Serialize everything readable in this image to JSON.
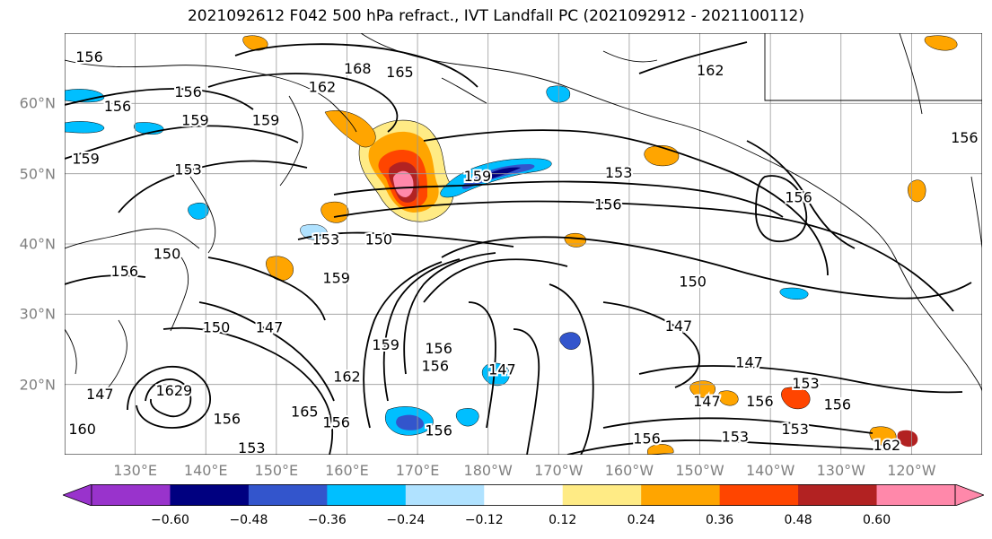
{
  "title": "2021092612 F042 500 hPa refract., IVT Landfall PC (2021092912 - 2021100112)",
  "map": {
    "projection": "equirectangular",
    "lon_range_east": [
      120,
      250
    ],
    "lat_range": [
      10,
      70
    ],
    "lat_labels": [
      {
        "lat": 60,
        "text": "60°N"
      },
      {
        "lat": 50,
        "text": "50°N"
      },
      {
        "lat": 40,
        "text": "40°N"
      },
      {
        "lat": 30,
        "text": "30°N"
      },
      {
        "lat": 20,
        "text": "20°N"
      }
    ],
    "lon_labels": [
      {
        "lon": 130,
        "text": "130°E"
      },
      {
        "lon": 140,
        "text": "140°E"
      },
      {
        "lon": 150,
        "text": "150°E"
      },
      {
        "lon": 160,
        "text": "160°E"
      },
      {
        "lon": 170,
        "text": "170°E"
      },
      {
        "lon": 180,
        "text": "180°W"
      },
      {
        "lon": 190,
        "text": "170°W"
      },
      {
        "lon": 200,
        "text": "160°W"
      },
      {
        "lon": 210,
        "text": "150°W"
      },
      {
        "lon": 220,
        "text": "140°W"
      },
      {
        "lon": 230,
        "text": "130°W"
      },
      {
        "lon": 240,
        "text": "120°W"
      }
    ],
    "gridlines": true,
    "contour_labels": [
      {
        "text": "168",
        "lon": 161.5,
        "lat": 64.8
      },
      {
        "text": "165",
        "lon": 167.5,
        "lat": 64.3
      },
      {
        "text": "162",
        "lon": 156.5,
        "lat": 62.2
      },
      {
        "text": "162",
        "lon": 211.5,
        "lat": 64.6
      },
      {
        "text": "156",
        "lon": 123.5,
        "lat": 66.5
      },
      {
        "text": "156",
        "lon": 137.5,
        "lat": 61.5
      },
      {
        "text": "156",
        "lon": 127.5,
        "lat": 59.5
      },
      {
        "text": "159",
        "lon": 138.5,
        "lat": 57.5
      },
      {
        "text": "159",
        "lon": 148.5,
        "lat": 57.5
      },
      {
        "text": "159",
        "lon": 123.0,
        "lat": 52.0
      },
      {
        "text": "153",
        "lon": 137.5,
        "lat": 50.5
      },
      {
        "text": "159",
        "lon": 178.5,
        "lat": 49.5
      },
      {
        "text": "153",
        "lon": 198.5,
        "lat": 50.0
      },
      {
        "text": "156",
        "lon": 197.0,
        "lat": 45.5
      },
      {
        "text": "156",
        "lon": 224.0,
        "lat": 46.5
      },
      {
        "text": "156",
        "lon": 247.5,
        "lat": 55.0
      },
      {
        "text": "153",
        "lon": 157.0,
        "lat": 40.5
      },
      {
        "text": "150",
        "lon": 164.5,
        "lat": 40.5
      },
      {
        "text": "150",
        "lon": 134.5,
        "lat": 38.5
      },
      {
        "text": "156",
        "lon": 128.5,
        "lat": 36.0
      },
      {
        "text": "159",
        "lon": 158.5,
        "lat": 35.0
      },
      {
        "text": "150",
        "lon": 209.0,
        "lat": 34.5
      },
      {
        "text": "147",
        "lon": 207.0,
        "lat": 28.2
      },
      {
        "text": "150",
        "lon": 141.5,
        "lat": 28.0
      },
      {
        "text": "147",
        "lon": 149.0,
        "lat": 28.0
      },
      {
        "text": "159",
        "lon": 165.5,
        "lat": 25.5
      },
      {
        "text": "156",
        "lon": 173.0,
        "lat": 25.0
      },
      {
        "text": "156",
        "lon": 172.5,
        "lat": 22.5
      },
      {
        "text": "147",
        "lon": 182.0,
        "lat": 22.0
      },
      {
        "text": "162",
        "lon": 160.0,
        "lat": 21.0
      },
      {
        "text": "147",
        "lon": 217.0,
        "lat": 23.0
      },
      {
        "text": "153",
        "lon": 225.0,
        "lat": 20.0
      },
      {
        "text": "147",
        "lon": 211.0,
        "lat": 17.5
      },
      {
        "text": "156",
        "lon": 218.5,
        "lat": 17.5
      },
      {
        "text": "156",
        "lon": 229.5,
        "lat": 17.0
      },
      {
        "text": "1629",
        "lon": 135.5,
        "lat": 19.0
      },
      {
        "text": "147",
        "lon": 125.0,
        "lat": 18.5
      },
      {
        "text": "156",
        "lon": 143.0,
        "lat": 15.0
      },
      {
        "text": "165",
        "lon": 154.0,
        "lat": 16.0
      },
      {
        "text": "156",
        "lon": 158.5,
        "lat": 14.5
      },
      {
        "text": "156",
        "lon": 173.0,
        "lat": 13.3
      },
      {
        "text": "156",
        "lon": 202.5,
        "lat": 12.2
      },
      {
        "text": "153",
        "lon": 215.0,
        "lat": 12.4
      },
      {
        "text": "153",
        "lon": 146.5,
        "lat": 10.8
      },
      {
        "text": "162",
        "lon": 236.5,
        "lat": 11.2
      },
      {
        "text": "153",
        "lon": 223.5,
        "lat": 13.5
      },
      {
        "text": "160",
        "lon": 122.5,
        "lat": 13.5
      }
    ]
  },
  "colorbar": {
    "colors": [
      "#9933CC",
      "#000080",
      "#3355CC",
      "#00BFFF",
      "#B0E2FF",
      "#FFFFFF",
      "#FFEB85",
      "#FFA500",
      "#FF4500",
      "#B22222",
      "#FF88AA"
    ],
    "extend_left_color": "#9933CC",
    "extend_right_color": "#FF88AA",
    "ticks": [
      "−0.60",
      "−0.48",
      "−0.36",
      "−0.24",
      "−0.12",
      "0.12",
      "0.24",
      "0.36",
      "0.48",
      "0.60"
    ]
  },
  "colors": {
    "contour": "#000000",
    "positive_low": "#FFEB85",
    "positive_mid": "#FFA500",
    "positive_high": "#FF4500",
    "positive_very_high": "#B22222",
    "positive_max": "#FF88AA",
    "negative_low": "#B0E2FF",
    "negative_mid": "#00BFFF",
    "negative_high": "#3355CC",
    "negative_very_high": "#000080"
  }
}
